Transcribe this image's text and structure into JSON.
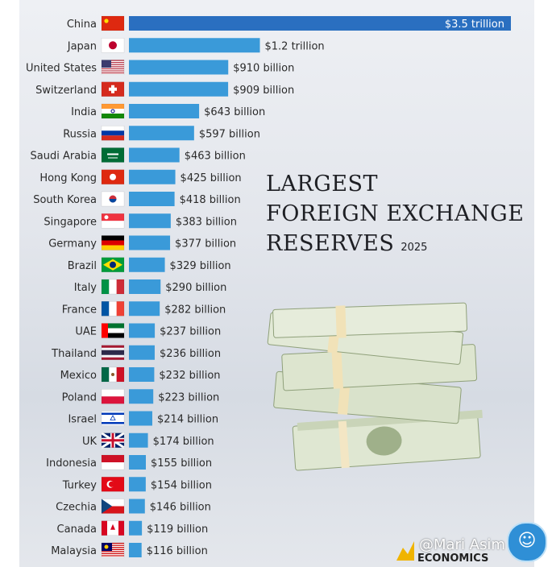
{
  "chart_data": {
    "type": "bar",
    "orientation": "horizontal",
    "title_lines": [
      "LARGEST",
      "FOREIGN EXCHANGE",
      "RESERVES"
    ],
    "year": "2025",
    "categories": [
      "China",
      "Japan",
      "United States",
      "Switzerland",
      "India",
      "Russia",
      "Saudi Arabia",
      "Hong Kong",
      "South Korea",
      "Singapore",
      "Germany",
      "Brazil",
      "Italy",
      "France",
      "UAE",
      "Thailand",
      "Mexico",
      "Poland",
      "Israel",
      "UK",
      "Indonesia",
      "Turkey",
      "Czechia",
      "Canada",
      "Malaysia"
    ],
    "values": [
      3500,
      1200,
      910,
      909,
      643,
      597,
      463,
      425,
      418,
      383,
      377,
      329,
      290,
      282,
      237,
      236,
      232,
      223,
      214,
      174,
      155,
      154,
      146,
      119,
      116
    ],
    "value_unit": "billion USD",
    "data_labels": [
      "$3.5 trillion",
      "$1.2 trillion",
      "$910 billion",
      "$909 billion",
      "$643 billion",
      "$597 billion",
      "$463 billion",
      "$425 billion",
      "$418 billion",
      "$383 billion",
      "$377 billion",
      "$329 billion",
      "$290 billion",
      "$282 billion",
      "$237 billion",
      "$236 billion",
      "$232 billion",
      "$223 billion",
      "$214 billion",
      "$174 billion",
      "$155 billion",
      "$154 billion",
      "$146 billion",
      "$119 billion",
      "$116 billion"
    ],
    "flags": [
      "china-flag",
      "japan-flag",
      "usa-flag",
      "switzerland-flag",
      "india-flag",
      "russia-flag",
      "saudi-arabia-flag",
      "hong-kong-flag",
      "south-korea-flag",
      "singapore-flag",
      "germany-flag",
      "brazil-flag",
      "italy-flag",
      "france-flag",
      "uae-flag",
      "thailand-flag",
      "mexico-flag",
      "poland-flag",
      "israel-flag",
      "uk-flag",
      "indonesia-flag",
      "turkey-flag",
      "czechia-flag",
      "canada-flag",
      "malaysia-flag"
    ],
    "bar_color": "#3a9ad9",
    "top_bar_color": "#2a6fc0",
    "grid": false,
    "legend": "none"
  },
  "watermark": {
    "credit": "@Mari Asim",
    "brand": "ECONOMICS"
  },
  "colors": {
    "background": "#e6e9ee",
    "label_text": "#2a2a2a",
    "value_text": "#2a2a2a"
  }
}
